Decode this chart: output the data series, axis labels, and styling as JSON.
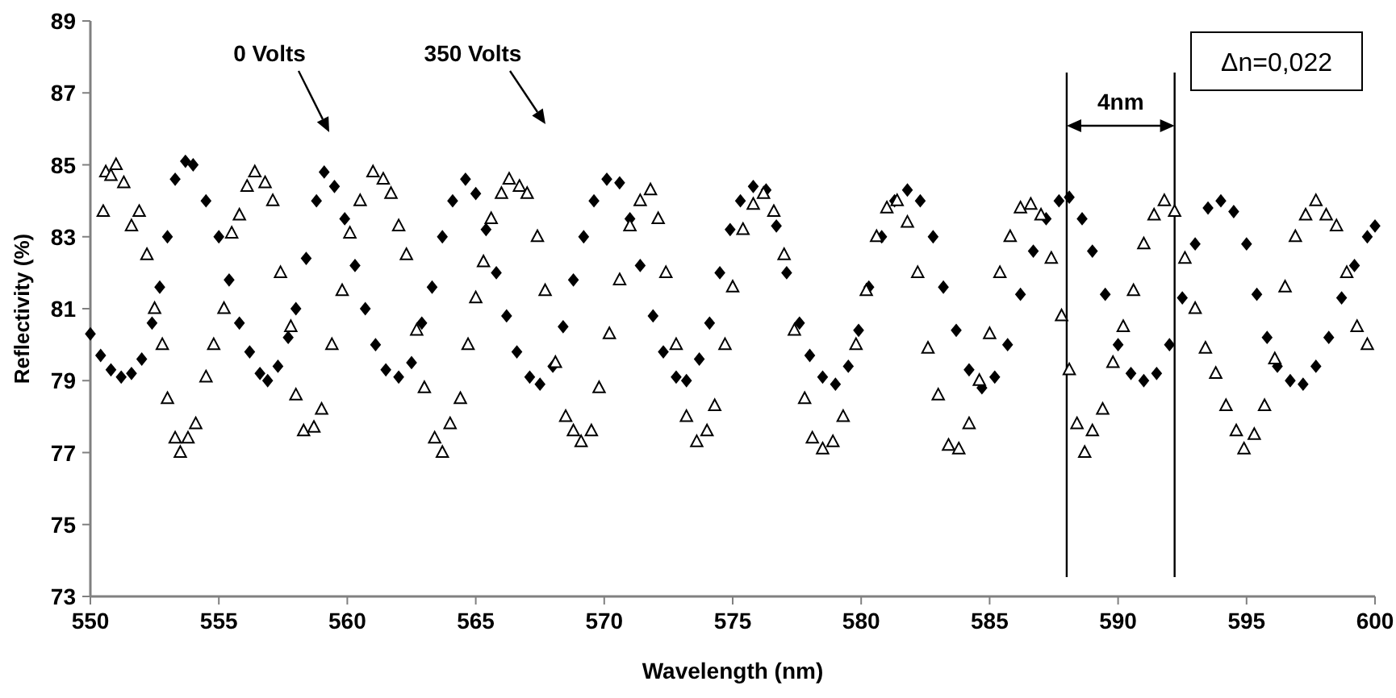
{
  "chart_data": {
    "type": "scatter",
    "xlabel": "Wavelength (nm)",
    "ylabel": "Reflectivity (%)",
    "xlim": [
      550,
      600
    ],
    "xticks": [
      550,
      555,
      560,
      565,
      570,
      575,
      580,
      585,
      590,
      595,
      600
    ],
    "ylim": [
      73,
      89
    ],
    "yticks": [
      73,
      75,
      77,
      79,
      81,
      83,
      85,
      87,
      89
    ],
    "grid": false,
    "series": [
      {
        "marker": "diamond",
        "color": "#000000",
        "x": [
          550.0,
          550.4,
          550.8,
          551.2,
          551.6,
          552.0,
          552.4,
          552.7,
          553.0,
          553.3,
          553.7,
          554.0,
          554.5,
          555.0,
          555.4,
          555.8,
          556.2,
          556.6,
          556.9,
          557.3,
          557.7,
          558.0,
          558.4,
          558.8,
          559.1,
          559.5,
          559.9,
          560.3,
          560.7,
          561.1,
          561.5,
          562.0,
          562.5,
          562.9,
          563.3,
          563.7,
          564.1,
          564.6,
          565.0,
          565.4,
          565.8,
          566.2,
          566.6,
          567.1,
          567.5,
          568.0,
          568.4,
          568.8,
          569.2,
          569.6,
          570.1,
          570.6,
          571.0,
          571.4,
          571.9,
          572.3,
          572.8,
          573.2,
          573.7,
          574.1,
          574.5,
          574.9,
          575.3,
          575.8,
          576.3,
          576.7,
          577.1,
          577.6,
          578.0,
          578.5,
          579.0,
          579.5,
          579.9,
          580.3,
          580.8,
          581.3,
          581.8,
          582.3,
          582.8,
          583.2,
          583.7,
          584.2,
          584.7,
          585.2,
          585.7,
          586.2,
          586.7,
          587.2,
          587.7,
          588.1,
          588.6,
          589.0,
          589.5,
          590.0,
          590.5,
          591.0,
          591.5,
          592.0,
          592.5,
          593.0,
          593.5,
          594.0,
          594.5,
          595.0,
          595.4,
          595.8,
          596.2,
          596.7,
          597.2,
          597.7,
          598.2,
          598.7,
          599.2,
          599.7,
          600.0
        ],
        "values": [
          80.3,
          79.7,
          79.3,
          79.1,
          79.2,
          79.6,
          80.6,
          81.6,
          83.0,
          84.6,
          85.1,
          85.0,
          84.0,
          83.0,
          81.8,
          80.6,
          79.8,
          79.2,
          79.0,
          79.4,
          80.2,
          81.0,
          82.4,
          84.0,
          84.8,
          84.4,
          83.5,
          82.2,
          81.0,
          80.0,
          79.3,
          79.1,
          79.5,
          80.6,
          81.6,
          83.0,
          84.0,
          84.6,
          84.2,
          83.2,
          82.0,
          80.8,
          79.8,
          79.1,
          78.9,
          79.4,
          80.5,
          81.8,
          83.0,
          84.0,
          84.6,
          84.5,
          83.5,
          82.2,
          80.8,
          79.8,
          79.1,
          79.0,
          79.6,
          80.6,
          82.0,
          83.2,
          84.0,
          84.4,
          84.3,
          83.3,
          82.0,
          80.6,
          79.7,
          79.1,
          78.9,
          79.4,
          80.4,
          81.6,
          83.0,
          84.0,
          84.3,
          84.0,
          83.0,
          81.6,
          80.4,
          79.3,
          78.8,
          79.1,
          80.0,
          81.4,
          82.6,
          83.5,
          84.0,
          84.1,
          83.5,
          82.6,
          81.4,
          80.0,
          79.2,
          79.0,
          79.2,
          80.0,
          81.3,
          82.8,
          83.8,
          84.0,
          83.7,
          82.8,
          81.4,
          80.2,
          79.4,
          79.0,
          78.9,
          79.4,
          80.2,
          81.3,
          82.2,
          83.0,
          83.3
        ]
      },
      {
        "marker": "triangle",
        "color": "#000000",
        "x": [
          550.5,
          550.6,
          550.8,
          551.0,
          551.3,
          551.6,
          551.9,
          552.2,
          552.5,
          552.8,
          553.0,
          553.3,
          553.5,
          553.8,
          554.1,
          554.5,
          554.8,
          555.2,
          555.5,
          555.8,
          556.1,
          556.4,
          556.8,
          557.1,
          557.4,
          557.8,
          558.0,
          558.3,
          558.7,
          559.0,
          559.4,
          559.8,
          560.1,
          560.5,
          561.0,
          561.4,
          561.7,
          562.0,
          562.3,
          562.7,
          563.0,
          563.4,
          563.7,
          564.0,
          564.4,
          564.7,
          565.0,
          565.3,
          565.6,
          566.0,
          566.3,
          566.7,
          567.0,
          567.4,
          567.7,
          568.1,
          568.5,
          568.8,
          569.1,
          569.5,
          569.8,
          570.2,
          570.6,
          571.0,
          571.4,
          571.8,
          572.1,
          572.4,
          572.8,
          573.2,
          573.6,
          574.0,
          574.3,
          574.7,
          575.0,
          575.4,
          575.8,
          576.2,
          576.6,
          577.0,
          577.4,
          577.8,
          578.1,
          578.5,
          578.9,
          579.3,
          579.8,
          580.2,
          580.6,
          581.0,
          581.4,
          581.8,
          582.2,
          582.6,
          583.0,
          583.4,
          583.8,
          584.2,
          584.6,
          585.0,
          585.4,
          585.8,
          586.2,
          586.6,
          587.0,
          587.4,
          587.8,
          588.1,
          588.4,
          588.7,
          589.0,
          589.4,
          589.8,
          590.2,
          590.6,
          591.0,
          591.4,
          591.8,
          592.2,
          592.6,
          593.0,
          593.4,
          593.8,
          594.2,
          594.6,
          594.9,
          595.3,
          595.7,
          596.1,
          596.5,
          596.9,
          597.3,
          597.7,
          598.1,
          598.5,
          598.9,
          599.3,
          599.7
        ],
        "values": [
          83.7,
          84.8,
          84.7,
          85.0,
          84.5,
          83.3,
          83.7,
          82.5,
          81.0,
          80.0,
          78.5,
          77.4,
          77.0,
          77.4,
          77.8,
          79.1,
          80.0,
          81.0,
          83.1,
          83.6,
          84.4,
          84.8,
          84.5,
          84.0,
          82.0,
          80.5,
          78.6,
          77.6,
          77.7,
          78.2,
          80.0,
          81.5,
          83.1,
          84.0,
          84.8,
          84.6,
          84.2,
          83.3,
          82.5,
          80.4,
          78.8,
          77.4,
          77.0,
          77.8,
          78.5,
          80.0,
          81.3,
          82.3,
          83.5,
          84.2,
          84.6,
          84.4,
          84.2,
          83.0,
          81.5,
          79.5,
          78.0,
          77.6,
          77.3,
          77.6,
          78.8,
          80.3,
          81.8,
          83.3,
          84.0,
          84.3,
          83.5,
          82.0,
          80.0,
          78.0,
          77.3,
          77.6,
          78.3,
          80.0,
          81.6,
          83.2,
          83.9,
          84.2,
          83.7,
          82.5,
          80.4,
          78.5,
          77.4,
          77.1,
          77.3,
          78.0,
          80.0,
          81.5,
          83.0,
          83.8,
          84.0,
          83.4,
          82.0,
          79.9,
          78.6,
          77.2,
          77.1,
          77.8,
          79.0,
          80.3,
          82.0,
          83.0,
          83.8,
          83.9,
          83.6,
          82.4,
          80.8,
          79.3,
          77.8,
          77.0,
          77.6,
          78.2,
          79.5,
          80.5,
          81.5,
          82.8,
          83.6,
          84.0,
          83.7,
          82.4,
          81.0,
          79.9,
          79.2,
          78.3,
          77.6,
          77.1,
          77.5,
          78.3,
          79.6,
          81.6,
          83.0,
          83.6,
          84.0,
          83.6,
          83.3,
          82.0,
          80.5,
          80.0
        ]
      }
    ],
    "ref_lines": [
      {
        "axis": "x",
        "value": 588.0,
        "color": "#000000"
      },
      {
        "axis": "x",
        "value": 592.2,
        "color": "#000000"
      }
    ],
    "annotations": [
      "0 Volts",
      "350 Volts",
      "4nm",
      "Δn=0,022"
    ]
  }
}
